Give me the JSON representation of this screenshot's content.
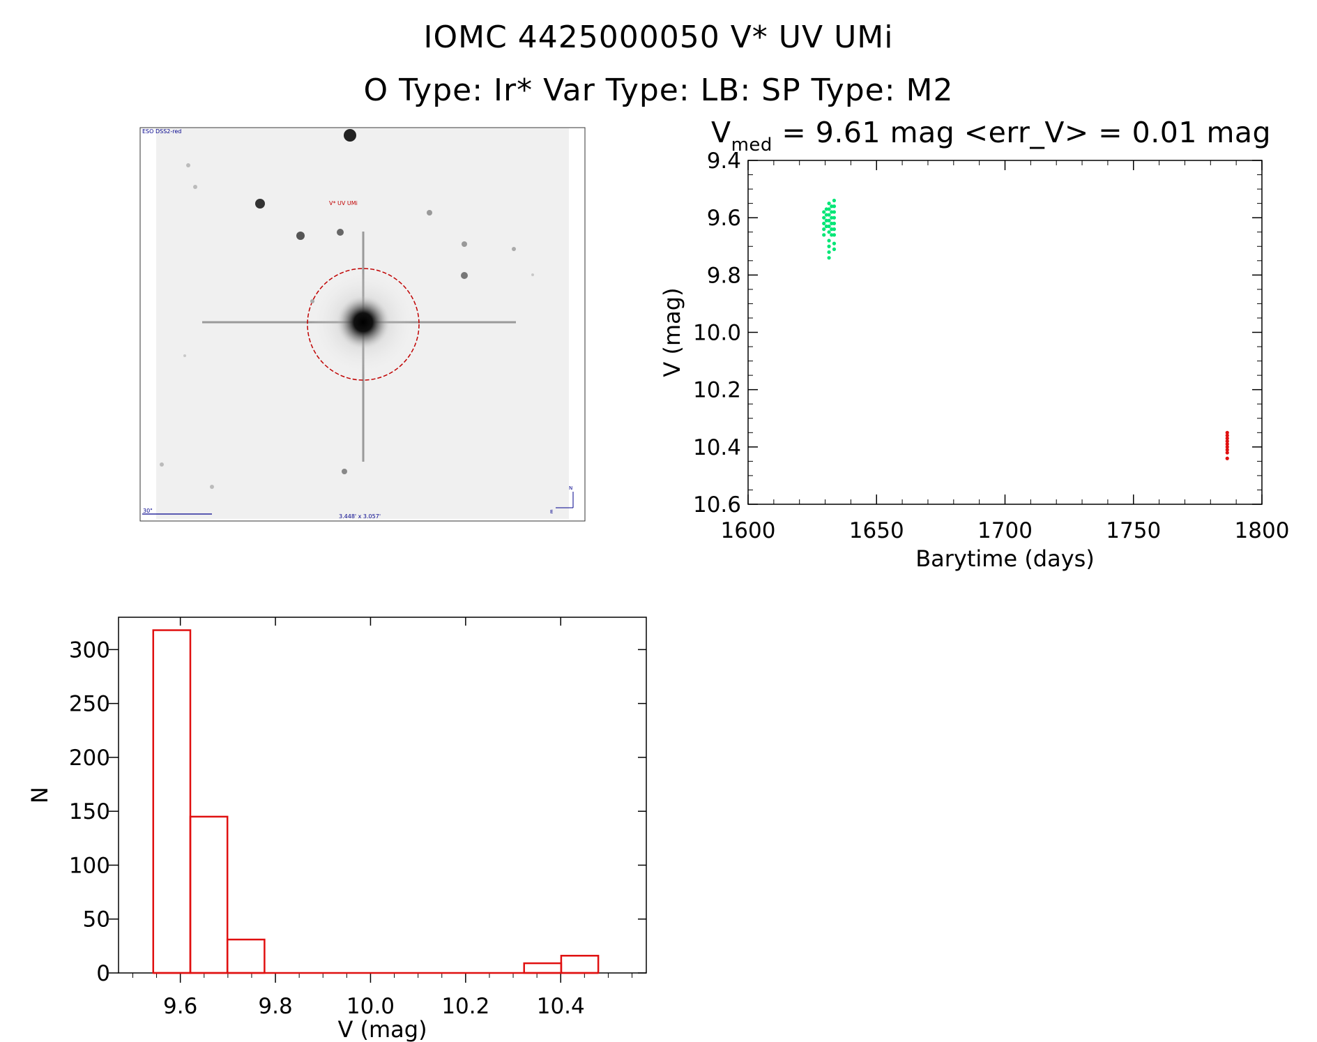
{
  "title_line1": "IOMC 4425000050    V* UV UMi",
  "title_line2": "O Type: Ir*  Var Type: LB:  SP Type: M2",
  "lightcurve_title": {
    "v_symbol": "V",
    "v_subscript": "med",
    "rest": " = 9.61 mag <err_V> = 0.01 mag"
  },
  "finder": {
    "survey_label": "ESO DSS2-red",
    "object_label": "V* UV UMi",
    "scale_label": "30\"",
    "fov_label": "3.448' x 3.057'",
    "north_label": "N",
    "east_label": "E"
  },
  "colors": {
    "green_points": "#00e676",
    "red_points": "#e01010",
    "hist_bars": "#e01010",
    "finder_circle": "#c00000",
    "finder_labels": "#00008b"
  },
  "chart_data": [
    {
      "type": "scatter",
      "xlabel": "Barytime (days)",
      "ylabel": "V (mag)",
      "xlim": [
        1600,
        1800
      ],
      "ylim": [
        10.6,
        9.4
      ],
      "y_inverted": true,
      "x_ticks": [
        "1600",
        "1650",
        "1700",
        "1750",
        "1800"
      ],
      "y_ticks": [
        "9.4",
        "9.6",
        "9.8",
        "10.0",
        "10.2",
        "10.4",
        "10.6"
      ],
      "series": [
        {
          "color": "green",
          "points": [
            {
              "x": 1629.5,
              "y": 9.58
            },
            {
              "x": 1629.5,
              "y": 9.6
            },
            {
              "x": 1629.5,
              "y": 9.62
            },
            {
              "x": 1629.5,
              "y": 9.64
            },
            {
              "x": 1629.5,
              "y": 9.66
            },
            {
              "x": 1630.5,
              "y": 9.57
            },
            {
              "x": 1630.5,
              "y": 9.59
            },
            {
              "x": 1630.5,
              "y": 9.61
            },
            {
              "x": 1630.5,
              "y": 9.63
            },
            {
              "x": 1631.5,
              "y": 9.55
            },
            {
              "x": 1631.5,
              "y": 9.57
            },
            {
              "x": 1631.5,
              "y": 9.59
            },
            {
              "x": 1631.5,
              "y": 9.61
            },
            {
              "x": 1631.5,
              "y": 9.63
            },
            {
              "x": 1631.5,
              "y": 9.65
            },
            {
              "x": 1631.5,
              "y": 9.68
            },
            {
              "x": 1631.5,
              "y": 9.7
            },
            {
              "x": 1631.5,
              "y": 9.72
            },
            {
              "x": 1631.5,
              "y": 9.74
            },
            {
              "x": 1632.5,
              "y": 9.56
            },
            {
              "x": 1632.5,
              "y": 9.58
            },
            {
              "x": 1632.5,
              "y": 9.6
            },
            {
              "x": 1632.5,
              "y": 9.62
            },
            {
              "x": 1632.5,
              "y": 9.64
            },
            {
              "x": 1632.5,
              "y": 9.66
            },
            {
              "x": 1633.5,
              "y": 9.54
            },
            {
              "x": 1633.5,
              "y": 9.56
            },
            {
              "x": 1633.5,
              "y": 9.58
            },
            {
              "x": 1633.5,
              "y": 9.6
            },
            {
              "x": 1633.5,
              "y": 9.62
            },
            {
              "x": 1633.5,
              "y": 9.64
            },
            {
              "x": 1633.5,
              "y": 9.66
            },
            {
              "x": 1633.5,
              "y": 9.69
            },
            {
              "x": 1633.5,
              "y": 9.71
            }
          ]
        },
        {
          "color": "red",
          "points": [
            {
              "x": 1786.5,
              "y": 10.35
            },
            {
              "x": 1786.5,
              "y": 10.36
            },
            {
              "x": 1786.5,
              "y": 10.37
            },
            {
              "x": 1786.5,
              "y": 10.38
            },
            {
              "x": 1786.5,
              "y": 10.39
            },
            {
              "x": 1786.5,
              "y": 10.4
            },
            {
              "x": 1786.5,
              "y": 10.41
            },
            {
              "x": 1786.5,
              "y": 10.42
            },
            {
              "x": 1786.5,
              "y": 10.44
            }
          ]
        }
      ]
    },
    {
      "type": "bar",
      "subtype": "histogram",
      "xlabel": "V (mag)",
      "ylabel": "N",
      "xlim": [
        9.47,
        10.58
      ],
      "ylim": [
        0,
        330
      ],
      "x_ticks": [
        "9.6",
        "9.8",
        "10.0",
        "10.2",
        "10.4"
      ],
      "y_ticks": [
        "0",
        "50",
        "100",
        "150",
        "200",
        "250",
        "300"
      ],
      "bin_edges": [
        9.543,
        9.621,
        9.699,
        9.777,
        9.855,
        9.933,
        10.011,
        10.089,
        10.167,
        10.245,
        10.323,
        10.401,
        10.479
      ],
      "values": [
        318,
        145,
        31,
        0,
        0,
        0,
        0,
        0,
        0,
        0,
        9,
        16
      ]
    }
  ]
}
